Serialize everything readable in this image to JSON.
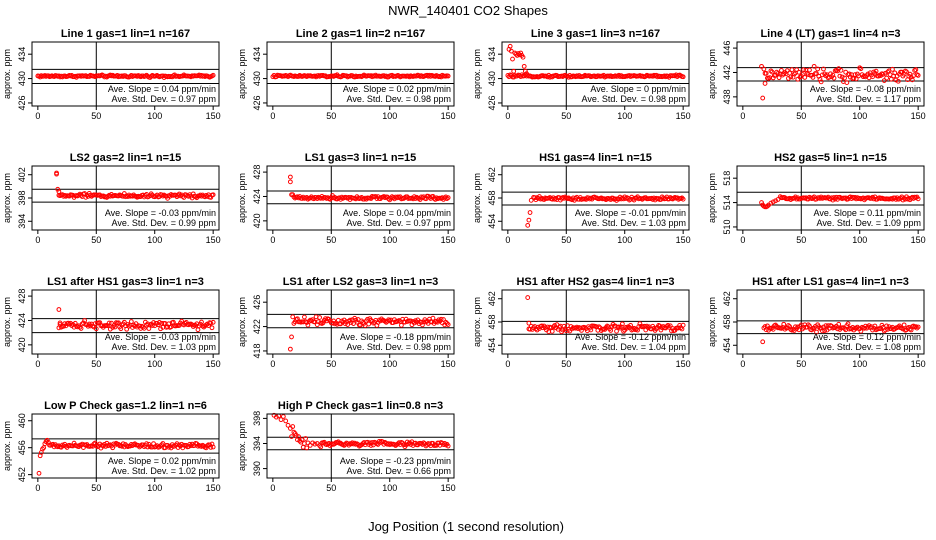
{
  "figure_title": "NWR_140401   CO2 Shapes",
  "xlabel": "Jog Position (1 second resolution)",
  "colors": {
    "points": "#ff0000",
    "frame": "#000000",
    "text": "#000000"
  },
  "chart_data": [
    {
      "type": "scatter",
      "title": "Line 1 gas=1 lin=1 n=167",
      "ylabel": "approx. ppm",
      "xlim": [
        -5,
        155
      ],
      "ylim": [
        425.5,
        436
      ],
      "yticks": [
        426,
        430,
        434
      ],
      "xticks": [
        0,
        50,
        100,
        150
      ],
      "vline": 50,
      "hlines": [
        429.2,
        431.5
      ],
      "slope_text": "Ave. Slope = 0.04 ppm/min",
      "std_text": "Ave. Std. Dev. = 0.97 ppm",
      "x_start": 0,
      "x_end": 150,
      "level": 430.4,
      "noise": 0.15,
      "early": []
    },
    {
      "type": "scatter",
      "title": "Line 2 gas=1 lin=2 n=167",
      "ylabel": "approx. ppm",
      "xlim": [
        -5,
        155
      ],
      "ylim": [
        425.5,
        436
      ],
      "yticks": [
        426,
        430,
        434
      ],
      "xticks": [
        0,
        50,
        100,
        150
      ],
      "vline": 50,
      "hlines": [
        429.2,
        431.5
      ],
      "slope_text": "Ave. Slope = 0.02 ppm/min",
      "std_text": "Ave. Std. Dev. = 0.98 ppm",
      "x_start": 0,
      "x_end": 150,
      "level": 430.4,
      "noise": 0.15,
      "early": []
    },
    {
      "type": "scatter",
      "title": "Line 3 gas=1 lin=3 n=167",
      "ylabel": "approx. ppm",
      "xlim": [
        -5,
        155
      ],
      "ylim": [
        425.5,
        436
      ],
      "yticks": [
        426,
        430,
        434
      ],
      "xticks": [
        0,
        50,
        100,
        150
      ],
      "vline": 50,
      "hlines": [
        429.2,
        431.5
      ],
      "slope_text": "Ave. Slope = 0 ppm/min",
      "std_text": "Ave. Std. Dev. = 0.98 ppm",
      "x_start": 0,
      "x_end": 150,
      "level": 430.4,
      "noise": 0.15,
      "early": [
        [
          1,
          434.8
        ],
        [
          2,
          435.3
        ],
        [
          3,
          434.5
        ],
        [
          4,
          433.2
        ],
        [
          5,
          431.2
        ],
        [
          6,
          434.2
        ],
        [
          7,
          434.0
        ],
        [
          8,
          433.8
        ],
        [
          9,
          434.1
        ],
        [
          10,
          433.9
        ],
        [
          11,
          434.2
        ],
        [
          12,
          433.8
        ],
        [
          13,
          433.5
        ],
        [
          14,
          432.0
        ],
        [
          15,
          431.2
        ],
        [
          16,
          430.8
        ]
      ]
    },
    {
      "type": "scatter",
      "title": "Line 4 (LT) gas=1 lin=4 n=3",
      "ylabel": "approx. ppm",
      "xlim": [
        -5,
        155
      ],
      "ylim": [
        436.5,
        447
      ],
      "yticks": [
        438,
        442,
        446
      ],
      "xticks": [
        0,
        50,
        100,
        150
      ],
      "vline": 50,
      "hlines": [
        440.6,
        442.8
      ],
      "slope_text": "Ave. Slope = -0.08 ppm/min",
      "std_text": "Ave. Std. Dev. = 1.17 ppm",
      "x_start": 18,
      "x_end": 150,
      "level": 441.6,
      "noise": 0.9,
      "early": [
        [
          17,
          437.8
        ],
        [
          16,
          443.0
        ],
        [
          19,
          440.2
        ]
      ]
    },
    {
      "type": "scatter",
      "title": "LS2 gas=2 lin=1 n=15",
      "ylabel": "approx. ppm",
      "xlim": [
        -5,
        155
      ],
      "ylim": [
        392.5,
        403.5
      ],
      "yticks": [
        394,
        398,
        402
      ],
      "xticks": [
        0,
        50,
        100,
        150
      ],
      "vline": 50,
      "hlines": [
        397.3,
        399.5
      ],
      "slope_text": "Ave. Slope = -0.03 ppm/min",
      "std_text": "Ave. Std. Dev. = 0.99 ppm",
      "x_start": 18,
      "x_end": 150,
      "level": 398.4,
      "noise": 0.3,
      "early": [
        [
          16,
          402.3
        ],
        [
          16,
          402.1
        ],
        [
          17,
          399.5
        ],
        [
          18,
          399.1
        ]
      ]
    },
    {
      "type": "scatter",
      "title": "LS1 gas=3 lin=1 n=15",
      "ylabel": "approx. ppm",
      "xlim": [
        -5,
        155
      ],
      "ylim": [
        418.5,
        429
      ],
      "yticks": [
        420,
        424,
        428
      ],
      "xticks": [
        0,
        50,
        100,
        150
      ],
      "vline": 50,
      "hlines": [
        422.8,
        424.9
      ],
      "slope_text": "Ave. Slope = 0.04 ppm/min",
      "std_text": "Ave. Std. Dev. = 0.97 ppm",
      "x_start": 18,
      "x_end": 150,
      "level": 423.8,
      "noise": 0.25,
      "early": [
        [
          15,
          427.2
        ],
        [
          15,
          426.4
        ],
        [
          16,
          424.3
        ],
        [
          17,
          424.3
        ]
      ]
    },
    {
      "type": "scatter",
      "title": "HS1 gas=4 lin=1 n=15",
      "ylabel": "approx. ppm",
      "xlim": [
        -5,
        155
      ],
      "ylim": [
        452.5,
        463.5
      ],
      "yticks": [
        454,
        458,
        462
      ],
      "xticks": [
        0,
        50,
        100,
        150
      ],
      "vline": 50,
      "hlines": [
        456.8,
        459.0
      ],
      "slope_text": "Ave. Slope = -0.01 ppm/min",
      "std_text": "Ave. Std. Dev. = 1.03 ppm",
      "x_start": 22,
      "x_end": 150,
      "level": 457.9,
      "noise": 0.25,
      "early": [
        [
          17,
          453.3
        ],
        [
          18,
          454.2
        ],
        [
          19,
          455.5
        ],
        [
          20,
          457.6
        ]
      ]
    },
    {
      "type": "scatter",
      "title": "HS2 gas=5 lin=1 n=15",
      "ylabel": "approx. ppm",
      "xlim": [
        -5,
        155
      ],
      "ylim": [
        509.5,
        520
      ],
      "yticks": [
        510,
        514,
        518
      ],
      "xticks": [
        0,
        50,
        100,
        150
      ],
      "vline": 50,
      "hlines": [
        513.6,
        515.7
      ],
      "slope_text": "Ave. Slope = 0.11 ppm/min",
      "std_text": "Ave. Std. Dev. = 1.09 ppm",
      "x_start": 32,
      "x_end": 150,
      "level": 514.7,
      "noise": 0.25,
      "early": [
        [
          16,
          514.0
        ],
        [
          17,
          513.6
        ],
        [
          18,
          513.4
        ],
        [
          19,
          513.3
        ],
        [
          20,
          513.3
        ],
        [
          21,
          513.4
        ],
        [
          22,
          513.6
        ],
        [
          24,
          513.9
        ],
        [
          26,
          514.1
        ],
        [
          28,
          514.3
        ],
        [
          30,
          514.5
        ]
      ]
    },
    {
      "type": "scatter",
      "title": "LS1 after HS1 gas=3 lin=1 n=3",
      "ylabel": "approx. ppm",
      "xlim": [
        -5,
        155
      ],
      "ylim": [
        418.5,
        429
      ],
      "yticks": [
        420,
        424,
        428
      ],
      "xticks": [
        0,
        50,
        100,
        150
      ],
      "vline": 50,
      "hlines": [
        422.0,
        424.3
      ],
      "slope_text": "Ave. Slope = -0.03 ppm/min",
      "std_text": "Ave. Std. Dev. = 1.03 ppm",
      "x_start": 18,
      "x_end": 150,
      "level": 423.3,
      "noise": 0.55,
      "early": [
        [
          18,
          425.8
        ],
        [
          19,
          423.6
        ]
      ]
    },
    {
      "type": "scatter",
      "title": "LS1 after LS2 gas=3 lin=1 n=3",
      "ylabel": "approx. ppm",
      "xlim": [
        -5,
        155
      ],
      "ylim": [
        417.5,
        428
      ],
      "yticks": [
        418,
        422,
        426
      ],
      "xticks": [
        0,
        50,
        100,
        150
      ],
      "vline": 50,
      "hlines": [
        421.8,
        424.0
      ],
      "slope_text": "Ave. Slope = -0.18 ppm/min",
      "std_text": "Ave. Std. Dev. = 0.98 ppm",
      "x_start": 18,
      "x_end": 150,
      "level": 422.9,
      "noise": 0.6,
      "early": [
        [
          15,
          418.3
        ],
        [
          16,
          420.3
        ],
        [
          17,
          423.6
        ]
      ]
    },
    {
      "type": "scatter",
      "title": "HS1 after HS2 gas=4 lin=1 n=3",
      "ylabel": "approx. ppm",
      "xlim": [
        -5,
        155
      ],
      "ylim": [
        452.5,
        463.5
      ],
      "yticks": [
        454,
        458,
        462
      ],
      "xticks": [
        0,
        50,
        100,
        150
      ],
      "vline": 50,
      "hlines": [
        455.9,
        458.1
      ],
      "slope_text": "Ave. Slope = -0.12 ppm/min",
      "std_text": "Ave. Std. Dev. = 1.04 ppm",
      "x_start": 18,
      "x_end": 150,
      "level": 457.0,
      "noise": 0.55,
      "early": [
        [
          17,
          462.2
        ],
        [
          18,
          457.8
        ]
      ]
    },
    {
      "type": "scatter",
      "title": "HS1 after LS1 gas=4 lin=1 n=3",
      "ylabel": "approx. ppm",
      "xlim": [
        -5,
        155
      ],
      "ylim": [
        452.5,
        463.5
      ],
      "yticks": [
        454,
        458,
        462
      ],
      "xticks": [
        0,
        50,
        100,
        150
      ],
      "vline": 50,
      "hlines": [
        456.0,
        458.2
      ],
      "slope_text": "Ave. Slope = 0.12 ppm/min",
      "std_text": "Ave. Std. Dev. = 1.08 ppm",
      "x_start": 18,
      "x_end": 150,
      "level": 457.0,
      "noise": 0.5,
      "early": [
        [
          17,
          454.6
        ]
      ]
    },
    {
      "type": "scatter",
      "title": "Low P Check gas=1.2 lin=1 n=6",
      "ylabel": "approx. ppm",
      "xlim": [
        -5,
        155
      ],
      "ylim": [
        451.5,
        461
      ],
      "yticks": [
        452,
        456,
        460
      ],
      "xticks": [
        0,
        50,
        100,
        150
      ],
      "vline": 50,
      "hlines": [
        455.2,
        457.3
      ],
      "slope_text": "Ave. Slope = 0.02 ppm/min",
      "std_text": "Ave. Std. Dev. = 1.02 ppm",
      "x_start": 10,
      "x_end": 150,
      "level": 456.3,
      "noise": 0.3,
      "early": [
        [
          1,
          452.2
        ],
        [
          2,
          454.8
        ],
        [
          3,
          455.3
        ],
        [
          4,
          455.8
        ],
        [
          5,
          456.0
        ],
        [
          6,
          456.6
        ],
        [
          7,
          456.9
        ],
        [
          8,
          457.1
        ],
        [
          9,
          456.8
        ]
      ]
    },
    {
      "type": "scatter",
      "title": "High P Check gas=1 lin=0.8 n=3",
      "ylabel": "approx. ppm",
      "xlim": [
        -5,
        155
      ],
      "ylim": [
        388.5,
        398.7
      ],
      "yticks": [
        390,
        394,
        398
      ],
      "xticks": [
        0,
        50,
        100,
        150
      ],
      "vline": 50,
      "hlines": [
        393.0,
        395.0
      ],
      "slope_text": "Ave. Slope = -0.23 ppm/min",
      "std_text": "Ave. Std. Dev. = 0.66 ppm",
      "x_start": 40,
      "x_end": 150,
      "level": 393.9,
      "noise": 0.35,
      "early": [
        [
          1,
          398.5
        ],
        [
          3,
          398.2
        ],
        [
          5,
          398.4
        ],
        [
          7,
          397.8
        ],
        [
          9,
          398.3
        ],
        [
          11,
          397.6
        ],
        [
          13,
          396.9
        ],
        [
          15,
          396.4
        ],
        [
          16,
          395.1
        ],
        [
          17,
          396.7
        ],
        [
          18,
          395.8
        ],
        [
          19,
          395.6
        ],
        [
          20,
          395.3
        ],
        [
          21,
          394.6
        ],
        [
          22,
          395.1
        ],
        [
          23,
          394.4
        ],
        [
          24,
          394.2
        ],
        [
          25,
          394.6
        ],
        [
          26,
          393.4
        ],
        [
          27,
          394.0
        ],
        [
          28,
          394.8
        ],
        [
          29,
          393.3
        ],
        [
          30,
          394.1
        ],
        [
          32,
          393.7
        ],
        [
          34,
          394.1
        ],
        [
          36,
          393.9
        ],
        [
          38,
          394.0
        ]
      ]
    }
  ]
}
